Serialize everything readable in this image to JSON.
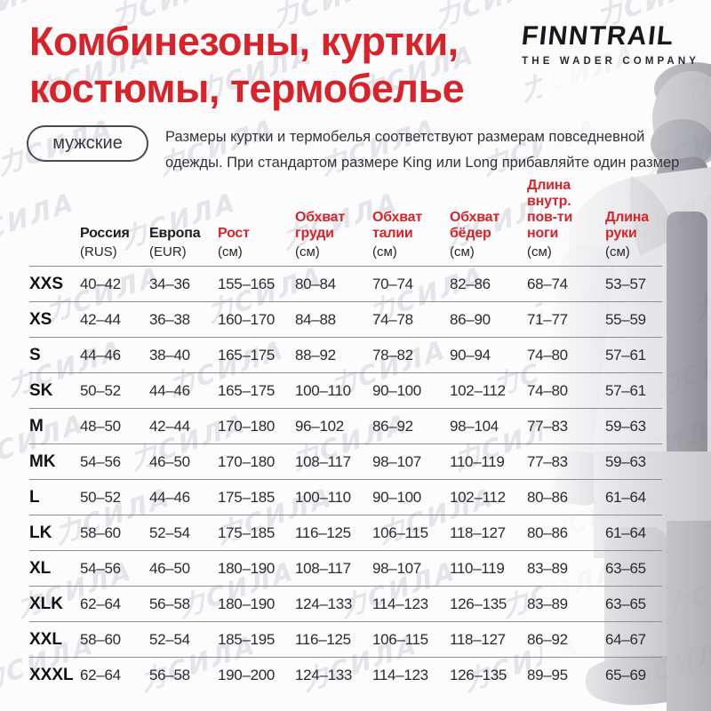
{
  "header": {
    "title": "Комбинезоны, куртки,\nкостюмы, термобелье",
    "category_pill": "мужские",
    "description": "Размеры куртки и термобелья соответствуют размерам повседневной\nодежды. При стандартом размере King или Long прибавляйте один размер"
  },
  "brand": {
    "logo": "FINNTRAIL",
    "tagline": "THE WADER COMPANY"
  },
  "watermark": {
    "text": "力СИЛА"
  },
  "colors": {
    "accent_red": "#d8232a",
    "text_dark": "#1b1d20",
    "divider_gray": "#8d8d90",
    "watermark_gray": "#e4e4ea"
  },
  "size_table": {
    "columns": [
      {
        "label": "",
        "sub": "",
        "color": "black"
      },
      {
        "label": "Россия",
        "sub": "(RUS)",
        "color": "black"
      },
      {
        "label": "Европа",
        "sub": "(EUR)",
        "color": "black"
      },
      {
        "label": "Рост",
        "sub": "(см)",
        "color": "red"
      },
      {
        "label": "Обхват\nгруди",
        "sub": "(см)",
        "color": "red"
      },
      {
        "label": "Обхват\nталии",
        "sub": "(см)",
        "color": "red"
      },
      {
        "label": "Обхват\nбёдер",
        "sub": "(см)",
        "color": "red"
      },
      {
        "label": "Длина\nвнутр.\nпов-ти\nноги",
        "sub": "(см)",
        "color": "red"
      },
      {
        "label": "Длина\nруки",
        "sub": "(см)",
        "color": "red"
      }
    ],
    "rows": [
      {
        "size": "XXS",
        "rus": "40–42",
        "eur": "34–36",
        "height": "155–165",
        "chest": "80–84",
        "waist": "70–74",
        "hips": "82–86",
        "inseam": "68–74",
        "arm": "53–57"
      },
      {
        "size": "XS",
        "rus": "42–44",
        "eur": "36–38",
        "height": "160–170",
        "chest": "84–88",
        "waist": "74–78",
        "hips": "86–90",
        "inseam": "71–77",
        "arm": "55–59"
      },
      {
        "size": "S",
        "rus": "44–46",
        "eur": "38–40",
        "height": "165–175",
        "chest": "88–92",
        "waist": "78–82",
        "hips": "90–94",
        "inseam": "74–80",
        "arm": "57–61"
      },
      {
        "size": "SK",
        "rus": "50–52",
        "eur": "44–46",
        "height": "165–175",
        "chest": "100–110",
        "waist": "90–100",
        "hips": "102–112",
        "inseam": "74–80",
        "arm": "57–61"
      },
      {
        "size": "M",
        "rus": "48–50",
        "eur": "42–44",
        "height": "170–180",
        "chest": "96–102",
        "waist": "86–92",
        "hips": "98–104",
        "inseam": "77–83",
        "arm": "59–63"
      },
      {
        "size": "MK",
        "rus": "54–56",
        "eur": "46–50",
        "height": "170–180",
        "chest": "108–117",
        "waist": "98–107",
        "hips": "110–119",
        "inseam": "77–83",
        "arm": "59–63"
      },
      {
        "size": "L",
        "rus": "50–52",
        "eur": "44–46",
        "height": "175–185",
        "chest": "100–110",
        "waist": "90–100",
        "hips": "102–112",
        "inseam": "80–86",
        "arm": "61–64"
      },
      {
        "size": "LK",
        "rus": "58–60",
        "eur": "52–54",
        "height": "175–185",
        "chest": "116–125",
        "waist": "106–115",
        "hips": "118–127",
        "inseam": "80–86",
        "arm": "61–64"
      },
      {
        "size": "XL",
        "rus": "54–56",
        "eur": "46–50",
        "height": "180–190",
        "chest": "108–117",
        "waist": "98–107",
        "hips": "110–119",
        "inseam": "83–89",
        "arm": "63–65"
      },
      {
        "size": "XLK",
        "rus": "62–64",
        "eur": "56–58",
        "height": "180–190",
        "chest": "124–133",
        "waist": "114–123",
        "hips": "126–135",
        "inseam": "83–89",
        "arm": "63–65"
      },
      {
        "size": "XXL",
        "rus": "58–60",
        "eur": "52–54",
        "height": "185–195",
        "chest": "116–125",
        "waist": "106–115",
        "hips": "118–127",
        "inseam": "86–92",
        "arm": "64–67"
      },
      {
        "size": "XXXL",
        "rus": "62–64",
        "eur": "56–58",
        "height": "190–200",
        "chest": "124–133",
        "waist": "114–123",
        "hips": "126–135",
        "inseam": "89–95",
        "arm": "65–69"
      }
    ]
  }
}
